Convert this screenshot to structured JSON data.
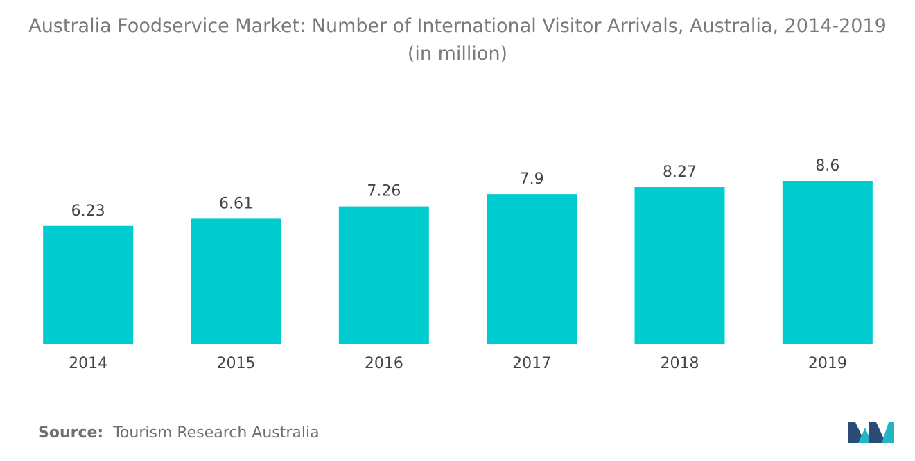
{
  "title": {
    "line1": "Australia Foodservice Market: Number of International Visitor Arrivals, Australia, 2014-2019",
    "line2": "(in million)"
  },
  "source": {
    "label": "Source:",
    "text": "Tourism Research Australia"
  },
  "colors": {
    "bar": "#00CCCF",
    "text": "#444444",
    "title": "#7a7a7a",
    "logo_dark": "#2B4A74",
    "logo_light": "#23B5C6"
  },
  "chart_data": {
    "type": "bar",
    "title": "Australia Foodservice Market: Number of International Visitor Arrivals, Australia, 2014-2019 (in million)",
    "categories": [
      "2014",
      "2015",
      "2016",
      "2017",
      "2018",
      "2019"
    ],
    "values": [
      6.23,
      6.61,
      7.26,
      7.9,
      8.27,
      8.6
    ],
    "data_labels": [
      "6.23",
      "6.61",
      "7.26",
      "7.9",
      "8.27",
      "8.6"
    ],
    "xlabel": "",
    "ylabel": "",
    "ylim": [
      0,
      8.6
    ],
    "grid": false,
    "legend": "none"
  }
}
